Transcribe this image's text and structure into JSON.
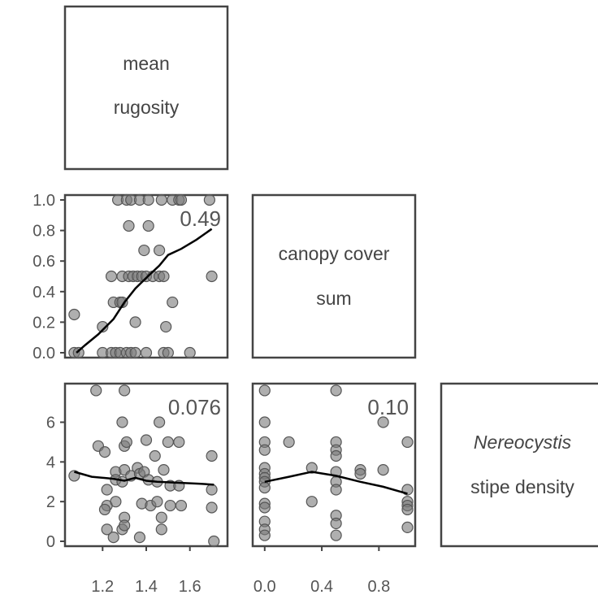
{
  "variables": [
    {
      "lines": [
        "mean",
        "rugosity"
      ],
      "italic": [
        false,
        false
      ]
    },
    {
      "lines": [
        "canopy cover",
        "sum"
      ],
      "italic": [
        false,
        false
      ]
    },
    {
      "lines": [
        "Nereocystis",
        "stipe density"
      ],
      "italic": [
        true,
        false
      ]
    }
  ],
  "colors": {
    "point_fill": "#7a7a7a",
    "point_fill_opacity": 0.6,
    "point_stroke": "#555555",
    "smooth_line": "#000000",
    "frame": "#444444",
    "text": "#555555"
  },
  "chart_data": [
    {
      "type": "scatter",
      "panel": "canopy cover sum vs mean rugosity",
      "correlation_label": "0.49",
      "xlim": [
        1.05,
        1.75
      ],
      "ylim": [
        0,
        1.0
      ],
      "x_ticks": [],
      "y_ticks": [
        "0.0",
        "0.2",
        "0.4",
        "0.6",
        "0.8",
        "1.0"
      ],
      "points": [
        [
          1.07,
          0.0
        ],
        [
          1.09,
          0.0
        ],
        [
          1.2,
          0.0
        ],
        [
          1.24,
          0.0
        ],
        [
          1.26,
          0.0
        ],
        [
          1.28,
          0.0
        ],
        [
          1.31,
          0.0
        ],
        [
          1.33,
          0.0
        ],
        [
          1.35,
          0.0
        ],
        [
          1.4,
          0.0
        ],
        [
          1.48,
          0.0
        ],
        [
          1.5,
          0.0
        ],
        [
          1.6,
          0.0
        ],
        [
          1.07,
          0.25
        ],
        [
          1.2,
          0.17
        ],
        [
          1.35,
          0.2
        ],
        [
          1.49,
          0.17
        ],
        [
          1.25,
          0.33
        ],
        [
          1.28,
          0.33
        ],
        [
          1.29,
          0.33
        ],
        [
          1.52,
          0.33
        ],
        [
          1.24,
          0.5
        ],
        [
          1.29,
          0.5
        ],
        [
          1.32,
          0.5
        ],
        [
          1.34,
          0.5
        ],
        [
          1.36,
          0.5
        ],
        [
          1.38,
          0.5
        ],
        [
          1.4,
          0.5
        ],
        [
          1.43,
          0.5
        ],
        [
          1.46,
          0.5
        ],
        [
          1.48,
          0.5
        ],
        [
          1.7,
          0.5
        ],
        [
          1.39,
          0.67
        ],
        [
          1.46,
          0.67
        ],
        [
          1.32,
          0.83
        ],
        [
          1.41,
          0.83
        ],
        [
          1.27,
          1.0
        ],
        [
          1.31,
          1.0
        ],
        [
          1.33,
          1.0
        ],
        [
          1.37,
          1.0
        ],
        [
          1.41,
          1.0
        ],
        [
          1.47,
          1.0
        ],
        [
          1.52,
          1.0
        ],
        [
          1.55,
          1.0
        ],
        [
          1.56,
          1.0
        ],
        [
          1.69,
          1.0
        ]
      ],
      "smooth": [
        [
          1.08,
          0.0
        ],
        [
          1.12,
          0.05
        ],
        [
          1.18,
          0.12
        ],
        [
          1.25,
          0.22
        ],
        [
          1.3,
          0.33
        ],
        [
          1.35,
          0.42
        ],
        [
          1.4,
          0.49
        ],
        [
          1.46,
          0.57
        ],
        [
          1.5,
          0.64
        ],
        [
          1.56,
          0.68
        ],
        [
          1.63,
          0.74
        ],
        [
          1.7,
          0.81
        ]
      ]
    },
    {
      "type": "scatter",
      "panel": "Nereocystis stipe density vs mean rugosity",
      "correlation_label": "0.076",
      "xlim": [
        1.05,
        1.75
      ],
      "ylim": [
        0,
        7.7
      ],
      "x_ticks": [
        "1.2",
        "1.4",
        "1.6"
      ],
      "y_ticks": [
        "0",
        "2",
        "4",
        "6"
      ],
      "points": [
        [
          1.07,
          3.3
        ],
        [
          1.17,
          7.6
        ],
        [
          1.3,
          7.6
        ],
        [
          1.18,
          4.8
        ],
        [
          1.21,
          4.5
        ],
        [
          1.22,
          2.6
        ],
        [
          1.22,
          1.8
        ],
        [
          1.21,
          1.6
        ],
        [
          1.22,
          0.6
        ],
        [
          1.25,
          0.2
        ],
        [
          1.26,
          3.5
        ],
        [
          1.26,
          3.1
        ],
        [
          1.26,
          2.0
        ],
        [
          1.29,
          6.0
        ],
        [
          1.3,
          4.8
        ],
        [
          1.31,
          5.0
        ],
        [
          1.3,
          3.6
        ],
        [
          1.29,
          3.0
        ],
        [
          1.3,
          1.2
        ],
        [
          1.29,
          0.6
        ],
        [
          1.3,
          0.8
        ],
        [
          1.33,
          3.3
        ],
        [
          1.36,
          3.7
        ],
        [
          1.37,
          3.4
        ],
        [
          1.38,
          1.9
        ],
        [
          1.39,
          3.5
        ],
        [
          1.37,
          0.2
        ],
        [
          1.4,
          5.1
        ],
        [
          1.41,
          3.1
        ],
        [
          1.42,
          1.8
        ],
        [
          1.44,
          4.3
        ],
        [
          1.45,
          3.0
        ],
        [
          1.45,
          2.0
        ],
        [
          1.46,
          6.0
        ],
        [
          1.47,
          1.2
        ],
        [
          1.47,
          0.6
        ],
        [
          1.48,
          3.6
        ],
        [
          1.5,
          5.0
        ],
        [
          1.51,
          2.8
        ],
        [
          1.51,
          1.8
        ],
        [
          1.55,
          5.0
        ],
        [
          1.55,
          2.8
        ],
        [
          1.56,
          1.8
        ],
        [
          1.7,
          4.3
        ],
        [
          1.7,
          2.6
        ],
        [
          1.7,
          1.7
        ],
        [
          1.71,
          0.0
        ]
      ],
      "smooth": [
        [
          1.07,
          3.5
        ],
        [
          1.15,
          3.25
        ],
        [
          1.25,
          3.15
        ],
        [
          1.3,
          3.05
        ],
        [
          1.35,
          3.2
        ],
        [
          1.4,
          3.05
        ],
        [
          1.45,
          3.0
        ],
        [
          1.55,
          2.95
        ],
        [
          1.65,
          2.9
        ],
        [
          1.71,
          2.85
        ]
      ]
    },
    {
      "type": "scatter",
      "panel": "Nereocystis stipe density vs canopy cover sum",
      "correlation_label": "0.10",
      "xlim": [
        -0.05,
        1.02
      ],
      "ylim": [
        0,
        7.7
      ],
      "x_ticks": [
        "0.0",
        "0.4",
        "0.8"
      ],
      "y_ticks": [],
      "points": [
        [
          0.0,
          7.6
        ],
        [
          0.0,
          6.0
        ],
        [
          0.0,
          5.0
        ],
        [
          0.0,
          4.6
        ],
        [
          0.0,
          3.7
        ],
        [
          0.0,
          3.4
        ],
        [
          0.0,
          3.2
        ],
        [
          0.0,
          3.0
        ],
        [
          0.0,
          2.7
        ],
        [
          0.0,
          1.9
        ],
        [
          0.0,
          1.7
        ],
        [
          0.0,
          1.0
        ],
        [
          0.0,
          0.6
        ],
        [
          0.0,
          0.3
        ],
        [
          0.17,
          5.0
        ],
        [
          0.33,
          3.7
        ],
        [
          0.33,
          2.0
        ],
        [
          0.5,
          7.6
        ],
        [
          0.5,
          5.0
        ],
        [
          0.5,
          4.6
        ],
        [
          0.5,
          4.3
        ],
        [
          0.5,
          3.5
        ],
        [
          0.5,
          3.0
        ],
        [
          0.5,
          2.6
        ],
        [
          0.5,
          1.3
        ],
        [
          0.5,
          0.9
        ],
        [
          0.5,
          0.3
        ],
        [
          0.67,
          3.6
        ],
        [
          0.67,
          3.4
        ],
        [
          0.83,
          6.0
        ],
        [
          0.83,
          3.6
        ],
        [
          1.0,
          5.0
        ],
        [
          1.0,
          2.6
        ],
        [
          1.0,
          2.0
        ],
        [
          1.0,
          1.8
        ],
        [
          1.0,
          1.6
        ],
        [
          1.0,
          0.7
        ]
      ],
      "smooth": [
        [
          0.0,
          3.0
        ],
        [
          0.17,
          3.25
        ],
        [
          0.33,
          3.5
        ],
        [
          0.5,
          3.3
        ],
        [
          0.67,
          3.0
        ],
        [
          0.83,
          2.75
        ],
        [
          1.0,
          2.4
        ]
      ]
    }
  ]
}
